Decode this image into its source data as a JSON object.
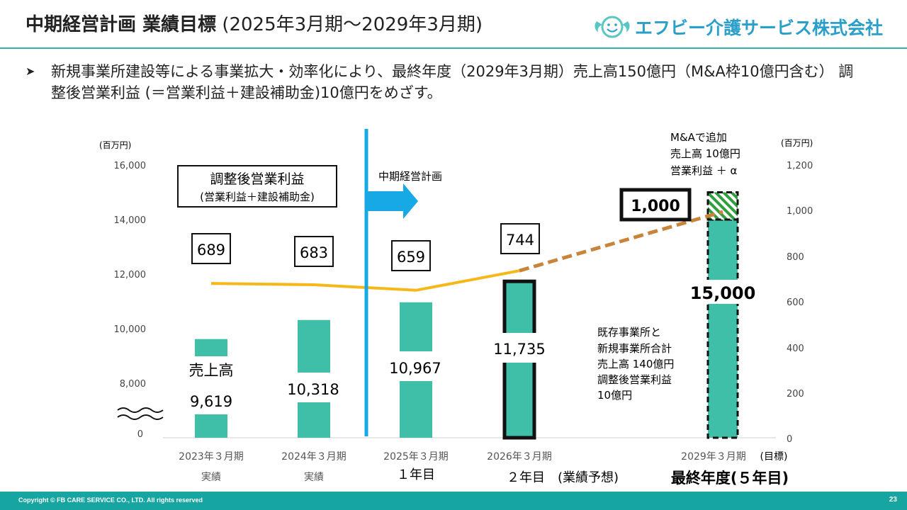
{
  "header": {
    "title_bold": "中期経営計画 業績目標",
    "title_normal": "(2025年3月期～2029年3月期)"
  },
  "logo": {
    "text": "エフビー介護サービス株式会社"
  },
  "bullet": {
    "text": "新規事業所建設等による事業拡大・効率化により、最終年度（2029年3月期）売上高150億円（M&A枠10億円含む） 調整後営業利益 (＝営業利益＋建設補助金)10億円をめざす。"
  },
  "chart_data": {
    "type": "bar+line",
    "categories": [
      "2023年３月期",
      "2024年３月期",
      "2025年３月期",
      "2026年３月期",
      "2029年３月期"
    ],
    "category_sublabels": [
      "実績",
      "実績",
      "１年目",
      "２年目　(業績予想)",
      "最終年度(５年目)"
    ],
    "target_label": "(目標)",
    "left_axis": {
      "unit": "(百万円)",
      "ticks": [
        0,
        8000,
        10000,
        12000,
        14000,
        16000
      ],
      "tick_labels": [
        "0",
        "8,000",
        "10,000",
        "12,000",
        "14,000",
        "16,000"
      ]
    },
    "right_axis": {
      "unit": "(百万円)",
      "ticks": [
        0,
        200,
        400,
        600,
        800,
        1000,
        1200
      ],
      "tick_labels": [
        "0",
        "200",
        "400",
        "600",
        "800",
        "1,000",
        "1,200"
      ]
    },
    "series": [
      {
        "name": "売上高",
        "axis": "left",
        "values": [
          9619,
          10318,
          10967,
          11735,
          14000
        ],
        "extra_top": 1000,
        "total_last": 15000
      },
      {
        "name": "調整後営業利益",
        "axis": "right",
        "values": [
          689,
          683,
          659,
          744,
          1000
        ]
      }
    ],
    "bar_labels": [
      "9,619",
      "10,318",
      "10,967",
      "11,735",
      "15,000"
    ],
    "profit_labels": [
      "689",
      "683",
      "659",
      "744",
      "1,000"
    ],
    "sales_series_label": "売上高",
    "legend_box": {
      "title": "調整後営業利益",
      "subtitle": "(営業利益＋建設補助金)"
    },
    "plan_label": "中期経営計画",
    "mna_note": [
      "M&Aで追加",
      "売上高 10億円",
      "営業利益 ＋ α"
    ],
    "existing_note": [
      "既存事業所と",
      "新規事業所合計",
      "売上高 140億円",
      "調整後営業利益",
      "10億円"
    ],
    "colors": {
      "bar": "#40bfa8",
      "line": "#f5b818",
      "dashed": "#c9843c",
      "plan": "#16a9e6",
      "hatch": "#2f9e3f"
    }
  },
  "footer": {
    "copyright": "Copyright © FB CARE SERVICE CO., LTD. All rights reserved",
    "page": "23"
  }
}
